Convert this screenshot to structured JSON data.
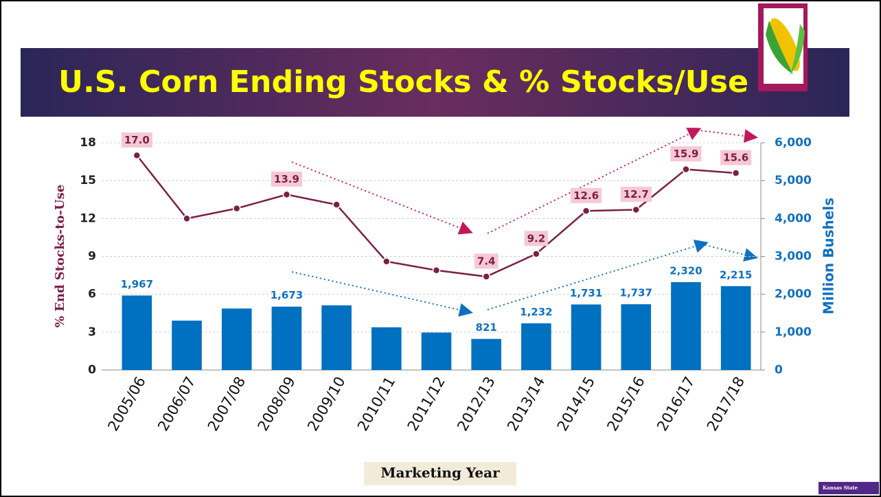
{
  "chart_data": {
    "type": "combo",
    "title": "U.S. Corn Ending Stocks & % Stocks/Use",
    "ylabel": "% End Stocks-to-Use",
    "y2label": "Million Bushels",
    "xlabel": "Marketing Year",
    "categories": [
      "2005/06",
      "2006/07",
      "2007/08",
      "2008/09",
      "2009/10",
      "2010/11",
      "2011/12",
      "2012/13",
      "2013/14",
      "2014/15",
      "2015/16",
      "2016/17",
      "2017/18"
    ],
    "ylim": [
      0,
      18
    ],
    "yticks": [
      0,
      3,
      6,
      9,
      12,
      15,
      18
    ],
    "y2lim": [
      0,
      6000
    ],
    "y2ticks": [
      0,
      {
        "value": 1000,
        "label": "1,000"
      },
      {
        "value": 2000,
        "label": "2,000"
      },
      {
        "value": 3000,
        "label": "3,000"
      },
      {
        "value": 4000,
        "label": "4,000"
      },
      {
        "value": 5000,
        "label": "5,000"
      },
      {
        "value": 6000,
        "label": "6,000"
      }
    ],
    "grid": true,
    "series": [
      {
        "type": "bar",
        "axis": "y2",
        "color": "#0070c0",
        "values": [
          1967,
          1304,
          1624,
          1673,
          1708,
          1128,
          989,
          821,
          1232,
          1731,
          1737,
          2320,
          2215
        ],
        "value_labels": [
          "1,967",
          null,
          null,
          "1,673",
          null,
          null,
          null,
          "821",
          "1,232",
          "1,731",
          "1,737",
          "2,320",
          "2,215"
        ]
      },
      {
        "type": "line",
        "color": "#7b1f45",
        "values": [
          17.0,
          12.0,
          12.8,
          13.9,
          13.1,
          8.6,
          7.9,
          7.4,
          9.2,
          12.6,
          12.7,
          15.9,
          15.6
        ],
        "value_labels": [
          "17.0",
          null,
          null,
          "13.9",
          null,
          null,
          null,
          "7.4",
          "9.2",
          "12.6",
          "12.7",
          "15.9",
          "15.6"
        ]
      }
    ]
  },
  "logo": "Kansas State"
}
